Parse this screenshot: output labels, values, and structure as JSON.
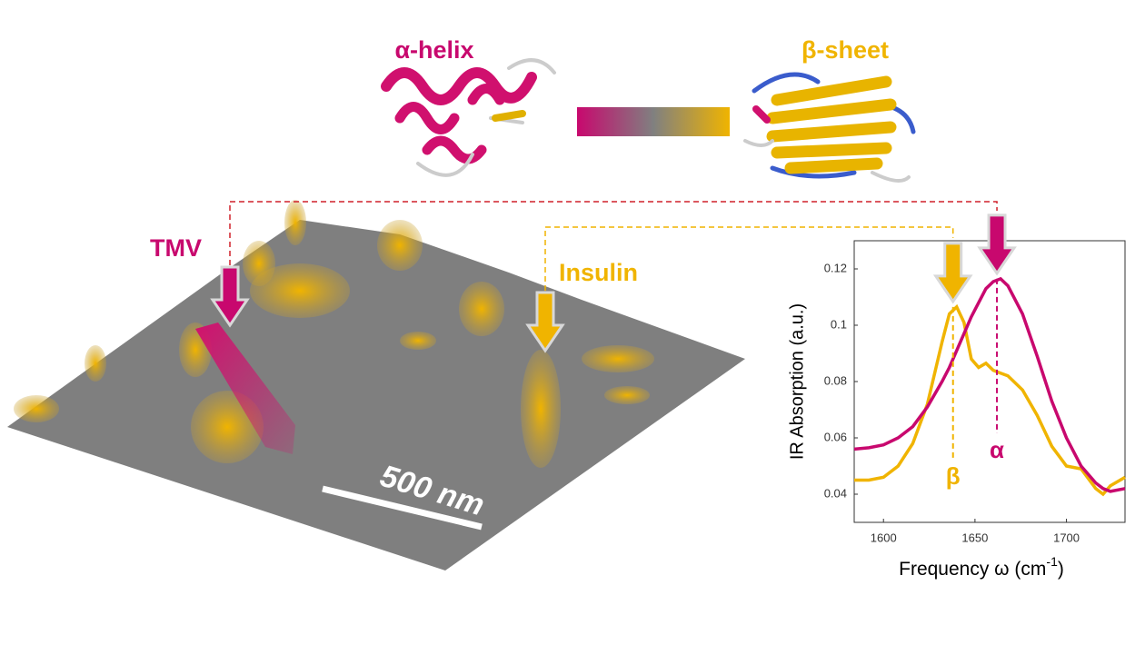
{
  "figure": {
    "alpha_helix": "α-helix",
    "beta_sheet": "β-sheet",
    "tmv": "TMV",
    "insulin": "Insulin",
    "scale_bar": "500 nm"
  },
  "chart_data": {
    "type": "line",
    "x_label": {
      "text": "Frequency ω (cm",
      "superscript": "-1",
      "suffix": ")"
    },
    "y_label": "IR Absorption (a.u.)",
    "xlim": [
      1584,
      1732
    ],
    "xticks": [
      1600,
      1650,
      1700
    ],
    "ylim": [
      0.03,
      0.13
    ],
    "yticks": [
      0.04,
      0.06,
      0.08,
      0.1,
      0.12
    ],
    "x": [
      1584,
      1592,
      1600,
      1608,
      1616,
      1624,
      1632,
      1636,
      1640,
      1644,
      1648,
      1652,
      1656,
      1660,
      1664,
      1668,
      1676,
      1684,
      1692,
      1700,
      1708,
      1716,
      1720,
      1724,
      1732
    ],
    "series": [
      {
        "color": "#f0b400",
        "values": [
          0.045,
          0.045,
          0.046,
          0.05,
          0.058,
          0.072,
          0.094,
          0.104,
          0.1065,
          0.101,
          0.088,
          0.085,
          0.0865,
          0.084,
          0.083,
          0.082,
          0.077,
          0.068,
          0.057,
          0.05,
          0.049,
          0.042,
          0.04,
          0.043,
          0.046
        ]
      },
      {
        "color": "#c8086e",
        "values": [
          0.056,
          0.0565,
          0.0575,
          0.06,
          0.064,
          0.071,
          0.08,
          0.085,
          0.091,
          0.097,
          0.103,
          0.108,
          0.113,
          0.1155,
          0.1165,
          0.114,
          0.104,
          0.089,
          0.073,
          0.06,
          0.05,
          0.044,
          0.042,
          0.041,
          0.042
        ]
      }
    ],
    "annotations": [
      {
        "text": "β",
        "x": 1638,
        "y": 0.1065,
        "color": "#f0b400"
      },
      {
        "text": "α",
        "x": 1662,
        "y": 0.1165,
        "color": "#c8086e"
      }
    ]
  }
}
